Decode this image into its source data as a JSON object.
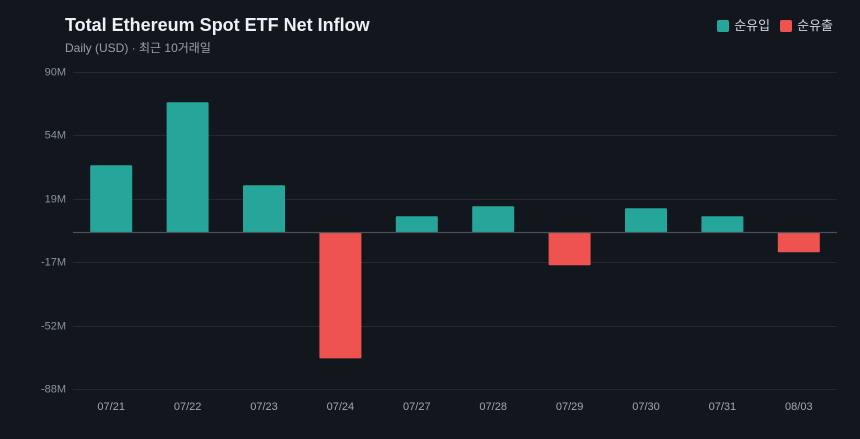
{
  "colors": {
    "background": "#12161d",
    "grid": "#232833",
    "zero_line": "#4a515c",
    "y_tick_text": "#8b929c",
    "x_tick_text": "#a3a9b1"
  },
  "chart_data": {
    "type": "bar",
    "title": "Total Ethereum Spot ETF Net Inflow",
    "subtitle": "Daily (USD) · 최근 10거래일",
    "categories": [
      "07/21",
      "07/22",
      "07/23",
      "07/24",
      "07/27",
      "07/28",
      "07/29",
      "07/30",
      "07/31",
      "08/03"
    ],
    "series": [
      {
        "values": [
          37.6,
          73.0,
          26.4,
          -70.8,
          9.0,
          14.6,
          -18.5,
          13.5,
          9.0,
          -11.2
        ]
      }
    ],
    "legend": [
      {
        "label": "순유입",
        "color": "#26a69a"
      },
      {
        "label": "순유출",
        "color": "#ef5350"
      }
    ],
    "legend_position": "top-right",
    "ylim": [
      -88,
      90
    ],
    "ytick_labels": [
      "90M",
      "54M",
      "19M",
      "-17M",
      "-52M",
      "-88M"
    ],
    "grid": true
  }
}
